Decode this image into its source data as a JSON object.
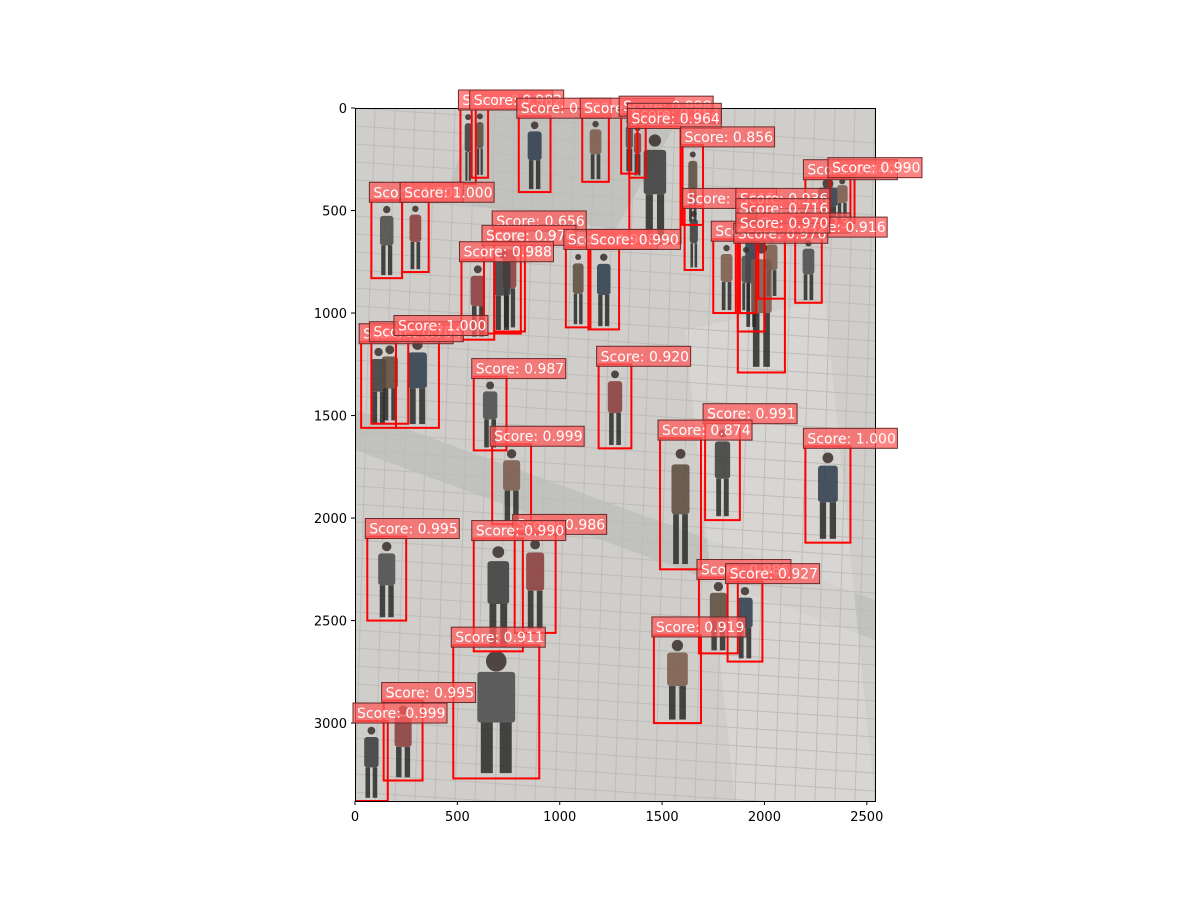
{
  "chart_data": {
    "type": "scatter",
    "title": "",
    "xlabel": "",
    "ylabel": "",
    "xlim": [
      0,
      2540
    ],
    "ylim": [
      3380,
      0
    ],
    "grid": false,
    "xticks": [
      0,
      500,
      1000,
      1500,
      2000,
      2500
    ],
    "yticks": [
      0,
      500,
      1000,
      1500,
      2000,
      2500,
      3000
    ],
    "xtick_labels": [
      "0",
      "500",
      "1000",
      "1500",
      "2000",
      "2500"
    ],
    "ytick_labels": [
      "0",
      "500",
      "1000",
      "1500",
      "2000",
      "2500",
      "3000"
    ],
    "box_color": "#ff0000",
    "label_color": "#ff5c5c",
    "detections": [
      {
        "x0": 515,
        "y0": 0,
        "x1": 590,
        "y1": 370,
        "label": "Score: 0.979"
      },
      {
        "x0": 570,
        "y0": 0,
        "x1": 650,
        "y1": 340,
        "label": "Score: 0.982"
      },
      {
        "x0": 800,
        "y0": 40,
        "x1": 955,
        "y1": 410,
        "label": "Score: 0.988"
      },
      {
        "x0": 1110,
        "y0": 40,
        "x1": 1240,
        "y1": 360,
        "label": "Score: 0.999"
      },
      {
        "x0": 1300,
        "y0": 30,
        "x1": 1380,
        "y1": 320,
        "label": "Score: 0.998"
      },
      {
        "x0": 1340,
        "y0": 65,
        "x1": 1420,
        "y1": 340,
        "label": "Score: 0.854"
      },
      {
        "x0": 1340,
        "y0": 90,
        "x1": 1590,
        "y1": 660,
        "label": "Score: 0.964"
      },
      {
        "x0": 1600,
        "y0": 180,
        "x1": 1700,
        "y1": 570,
        "label": "Score: 0.856"
      },
      {
        "x0": 2200,
        "y0": 340,
        "x1": 2420,
        "y1": 580,
        "label": "Score: 0.840"
      },
      {
        "x0": 2320,
        "y0": 330,
        "x1": 2440,
        "y1": 560,
        "label": "Score: 0.990"
      },
      {
        "x0": 80,
        "y0": 450,
        "x1": 230,
        "y1": 830,
        "label": "Score: 1.000"
      },
      {
        "x0": 230,
        "y0": 450,
        "x1": 360,
        "y1": 800,
        "label": "Score: 1.000"
      },
      {
        "x0": 1610,
        "y0": 480,
        "x1": 1700,
        "y1": 790,
        "label": "Score: 0.615"
      },
      {
        "x0": 1870,
        "y0": 480,
        "x1": 2000,
        "y1": 640,
        "label": "Score: 0.936"
      },
      {
        "x0": 1870,
        "y0": 530,
        "x1": 2000,
        "y1": 1090,
        "label": "Score: 0.716"
      },
      {
        "x0": 1970,
        "y0": 600,
        "x1": 2100,
        "y1": 930,
        "label": "Score: 0.713"
      },
      {
        "x0": 2150,
        "y0": 620,
        "x1": 2280,
        "y1": 950,
        "label": "Score: 0.916"
      },
      {
        "x0": 680,
        "y0": 590,
        "x1": 830,
        "y1": 1090,
        "label": "Score: 0.656"
      },
      {
        "x0": 630,
        "y0": 660,
        "x1": 810,
        "y1": 1100,
        "label": "Score: 0.976"
      },
      {
        "x0": 1030,
        "y0": 680,
        "x1": 1150,
        "y1": 1070,
        "label": "Score: 0.998"
      },
      {
        "x0": 1140,
        "y0": 680,
        "x1": 1290,
        "y1": 1080,
        "label": "Score: 0.990"
      },
      {
        "x0": 1750,
        "y0": 640,
        "x1": 1880,
        "y1": 1000,
        "label": "Score: 0.970"
      },
      {
        "x0": 1860,
        "y0": 650,
        "x1": 1960,
        "y1": 1000,
        "label": "Score: 0.976"
      },
      {
        "x0": 520,
        "y0": 740,
        "x1": 680,
        "y1": 1130,
        "label": "Score: 0.988"
      },
      {
        "x0": 30,
        "y0": 1140,
        "x1": 200,
        "y1": 1560,
        "label": "Score: 0.990"
      },
      {
        "x0": 80,
        "y0": 1130,
        "x1": 260,
        "y1": 1540,
        "label": "Score: 0.704"
      },
      {
        "x0": 200,
        "y0": 1100,
        "x1": 410,
        "y1": 1560,
        "label": "Score: 1.000"
      },
      {
        "x0": 1870,
        "y0": 600,
        "x1": 2100,
        "y1": 1290,
        "label": "Score: 0.970"
      },
      {
        "x0": 580,
        "y0": 1310,
        "x1": 740,
        "y1": 1670,
        "label": "Score: 0.987"
      },
      {
        "x0": 1190,
        "y0": 1250,
        "x1": 1350,
        "y1": 1660,
        "label": "Score: 0.920"
      },
      {
        "x0": 1710,
        "y0": 1530,
        "x1": 1880,
        "y1": 2010,
        "label": "Score: 0.991"
      },
      {
        "x0": 1490,
        "y0": 1610,
        "x1": 1690,
        "y1": 2250,
        "label": "Score: 0.874"
      },
      {
        "x0": 2200,
        "y0": 1650,
        "x1": 2420,
        "y1": 2120,
        "label": "Score: 1.000"
      },
      {
        "x0": 670,
        "y0": 1640,
        "x1": 860,
        "y1": 2030,
        "label": "Score: 0.999"
      },
      {
        "x0": 60,
        "y0": 2090,
        "x1": 250,
        "y1": 2500,
        "label": "Score: 0.995"
      },
      {
        "x0": 780,
        "y0": 2070,
        "x1": 980,
        "y1": 2560,
        "label": "Score: 0.986"
      },
      {
        "x0": 580,
        "y0": 2100,
        "x1": 820,
        "y1": 2650,
        "label": "Score: 0.990"
      },
      {
        "x0": 1680,
        "y0": 2290,
        "x1": 1870,
        "y1": 2660,
        "label": "Score: 0.986"
      },
      {
        "x0": 1820,
        "y0": 2310,
        "x1": 1990,
        "y1": 2700,
        "label": "Score: 0.927"
      },
      {
        "x0": 1460,
        "y0": 2570,
        "x1": 1690,
        "y1": 3000,
        "label": "Score: 0.919"
      },
      {
        "x0": 480,
        "y0": 2620,
        "x1": 900,
        "y1": 3270,
        "label": "Score: 0.911"
      },
      {
        "x0": 140,
        "y0": 2890,
        "x1": 330,
        "y1": 3280,
        "label": "Score: 0.995"
      },
      {
        "x0": 0,
        "y0": 2990,
        "x1": 160,
        "y1": 3380,
        "label": "Score: 0.999"
      }
    ]
  }
}
